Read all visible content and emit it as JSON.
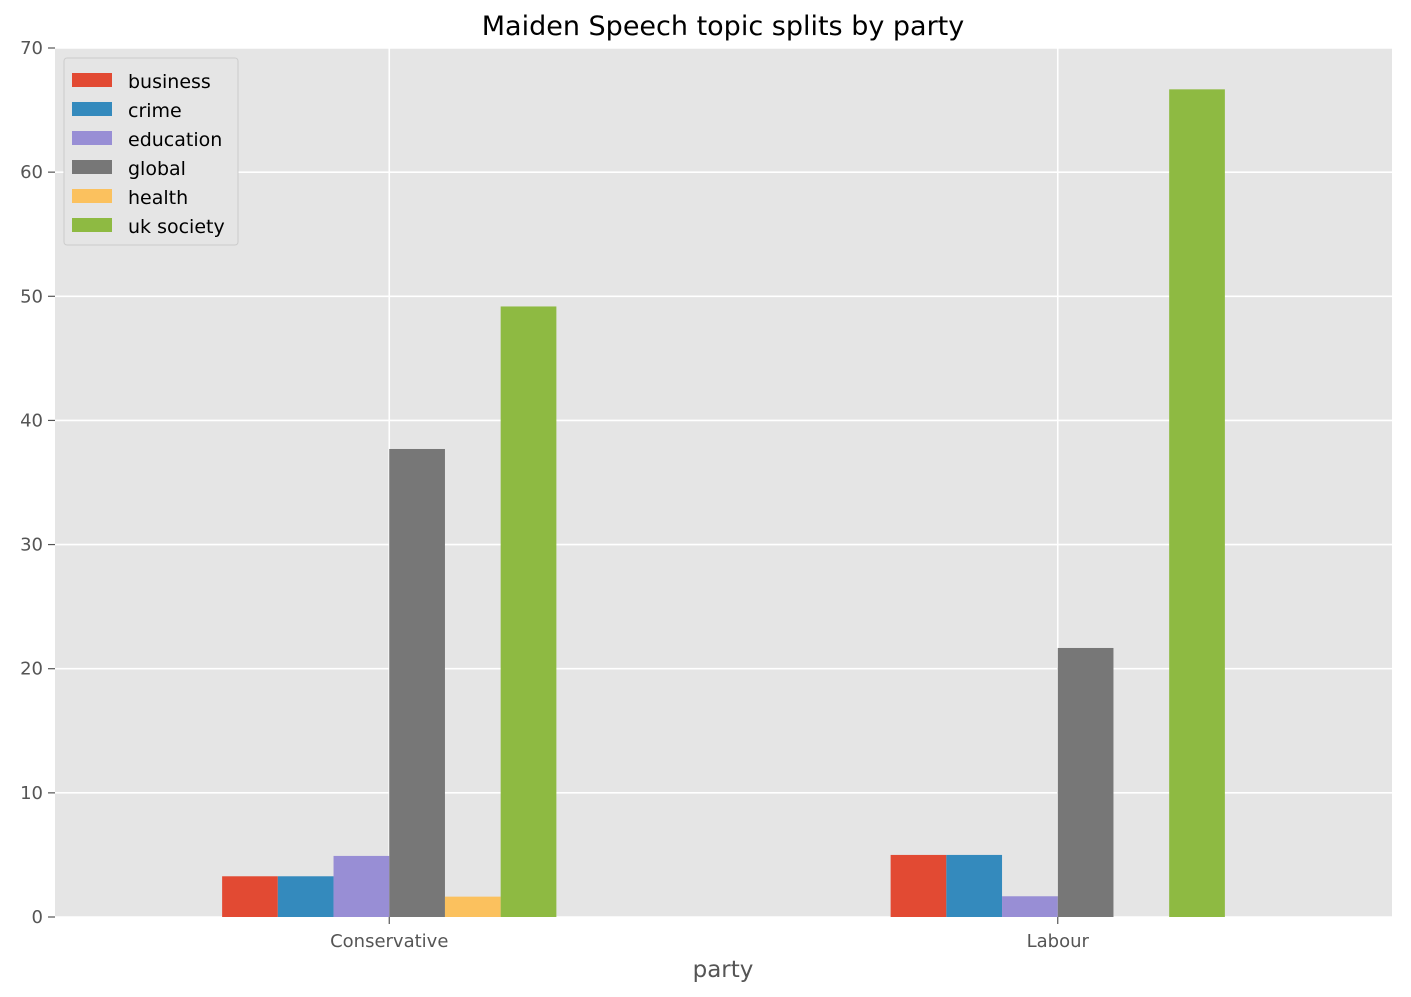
{
  "chart_data": {
    "type": "bar",
    "title": "Maiden Speech topic splits by party",
    "xlabel": "party",
    "ylabel": "",
    "categories": [
      "Conservative",
      "Labour"
    ],
    "ylim": [
      0,
      70
    ],
    "yticks": [
      0,
      10,
      20,
      30,
      40,
      50,
      60,
      70
    ],
    "grid": true,
    "legend_position": "top-left",
    "series": [
      {
        "name": "business",
        "color": "#E24A33",
        "values": [
          3.28,
          5.0
        ]
      },
      {
        "name": "crime",
        "color": "#348ABD",
        "values": [
          3.28,
          5.0
        ]
      },
      {
        "name": "education",
        "color": "#988ED5",
        "values": [
          4.92,
          1.67
        ]
      },
      {
        "name": "global",
        "color": "#777777",
        "values": [
          37.7,
          21.67
        ]
      },
      {
        "name": "health",
        "color": "#FBC15E",
        "values": [
          1.64,
          0.0
        ]
      },
      {
        "name": "uk society",
        "color": "#8EBA42",
        "values": [
          49.18,
          66.67
        ]
      }
    ]
  }
}
